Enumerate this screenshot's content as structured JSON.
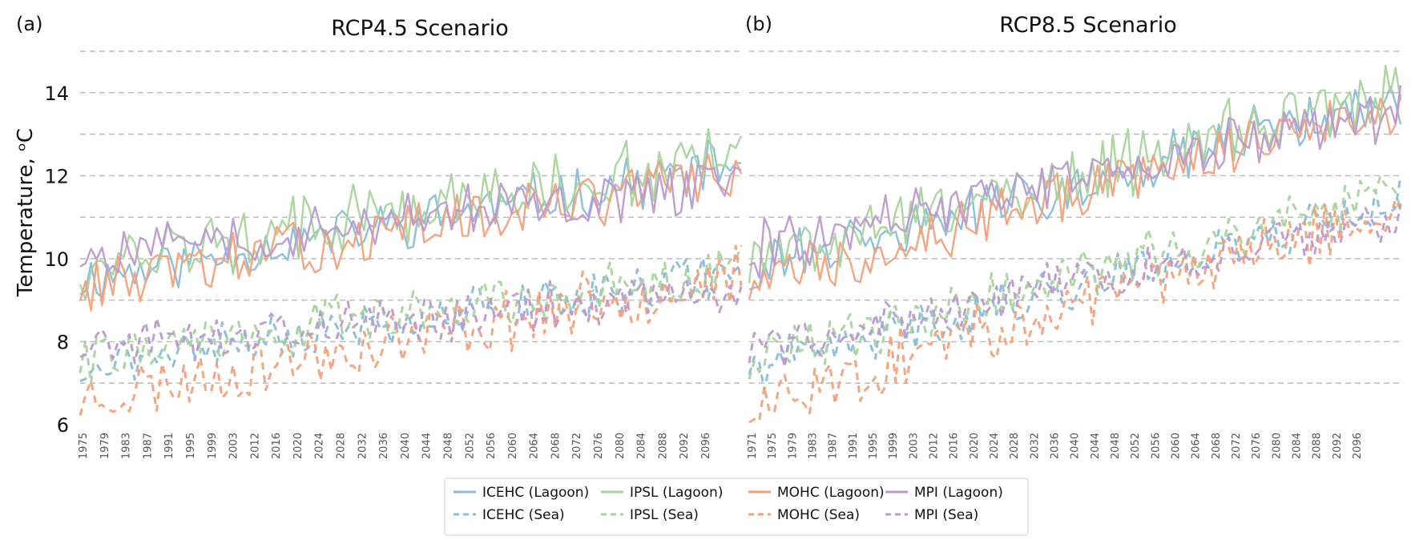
{
  "ylabel": "Temperature, ᵒC",
  "colors": {
    "ICEHC": "#88bddc",
    "IPSL": "#a6d59a",
    "MOHC": "#f4a079",
    "MPI": "#bc99d0"
  },
  "legend": {
    "items": [
      {
        "label": "ICEHC (Lagoon)",
        "model": "ICEHC",
        "dashed": false
      },
      {
        "label": "IPSL (Lagoon)",
        "model": "IPSL",
        "dashed": false
      },
      {
        "label": "MOHC (Lagoon)",
        "model": "MOHC",
        "dashed": false
      },
      {
        "label": "MPI (Lagoon)",
        "model": "MPI",
        "dashed": false
      },
      {
        "label": "ICEHC (Sea)",
        "model": "ICEHC",
        "dashed": true
      },
      {
        "label": "IPSL (Sea)",
        "model": "IPSL",
        "dashed": true
      },
      {
        "label": "MOHC (Sea)",
        "model": "MOHC",
        "dashed": true
      },
      {
        "label": "MPI (Sea)",
        "model": "MPI",
        "dashed": true
      }
    ]
  },
  "chart_data": [
    {
      "type": "line",
      "panel_label": "(a)",
      "title": "RCP4.5 Scenario",
      "xlabel": "",
      "ylabel": "Temperature, ᵒC",
      "ylim": [
        6,
        15
      ],
      "yticks": [
        6,
        8,
        10,
        12,
        14
      ],
      "grid": true,
      "n_points": 122,
      "x_tick_labels": [
        "1975",
        "1979",
        "1983",
        "1987",
        "1991",
        "1995",
        "1999",
        "2003",
        "2012",
        "2016",
        "2020",
        "2024",
        "2028",
        "2032",
        "2036",
        "2040",
        "2044",
        "2048",
        "2052",
        "2056",
        "2060",
        "2064",
        "2068",
        "2072",
        "2076",
        "2080",
        "2084",
        "2088",
        "2092",
        "2096"
      ],
      "series": [
        {
          "name": "ICEHC (Lagoon)",
          "model": "ICEHC",
          "dashed": false,
          "start": 9.5,
          "end": 12.3,
          "amp": 0.55,
          "seed": 11
        },
        {
          "name": "IPSL (Lagoon)",
          "model": "IPSL",
          "dashed": false,
          "start": 9.8,
          "end": 12.5,
          "amp": 0.7,
          "seed": 12
        },
        {
          "name": "MOHC (Lagoon)",
          "model": "MOHC",
          "dashed": false,
          "start": 9.3,
          "end": 12.1,
          "amp": 0.6,
          "seed": 13
        },
        {
          "name": "MPI (Lagoon)",
          "model": "MPI",
          "dashed": false,
          "start": 10.1,
          "end": 11.8,
          "amp": 0.6,
          "seed": 14
        },
        {
          "name": "ICEHC (Sea)",
          "model": "ICEHC",
          "dashed": true,
          "start": 7.4,
          "end": 9.7,
          "amp": 0.5,
          "seed": 21
        },
        {
          "name": "IPSL (Sea)",
          "model": "IPSL",
          "dashed": true,
          "start": 7.6,
          "end": 9.8,
          "amp": 0.55,
          "seed": 22
        },
        {
          "name": "MOHC (Sea)",
          "model": "MOHC",
          "dashed": true,
          "start": 6.6,
          "end": 9.6,
          "amp": 0.65,
          "seed": 23
        },
        {
          "name": "MPI (Sea)",
          "model": "MPI",
          "dashed": true,
          "start": 7.9,
          "end": 9.2,
          "amp": 0.5,
          "seed": 24
        }
      ]
    },
    {
      "type": "line",
      "panel_label": "(b)",
      "title": "RCP8.5 Scenario",
      "xlabel": "",
      "ylabel": "",
      "ylim": [
        6,
        15
      ],
      "yticks": [
        6,
        8,
        10,
        12,
        14
      ],
      "grid": true,
      "n_points": 130,
      "x_tick_labels": [
        "1971",
        "1975",
        "1979",
        "1983",
        "1987",
        "1991",
        "1995",
        "1999",
        "2003",
        "2012",
        "2016",
        "2020",
        "2024",
        "2028",
        "2032",
        "2036",
        "2040",
        "2044",
        "2048",
        "2052",
        "2056",
        "2060",
        "2064",
        "2068",
        "2072",
        "2076",
        "2080",
        "2084",
        "2088",
        "2092",
        "2096"
      ],
      "series": [
        {
          "name": "ICEHC (Lagoon)",
          "model": "ICEHC",
          "dashed": false,
          "start": 9.7,
          "end": 13.9,
          "amp": 0.6,
          "seed": 31
        },
        {
          "name": "IPSL (Lagoon)",
          "model": "IPSL",
          "dashed": false,
          "start": 9.9,
          "end": 14.1,
          "amp": 0.7,
          "seed": 32
        },
        {
          "name": "MOHC (Lagoon)",
          "model": "MOHC",
          "dashed": false,
          "start": 9.4,
          "end": 13.8,
          "amp": 0.6,
          "seed": 33
        },
        {
          "name": "MPI (Lagoon)",
          "model": "MPI",
          "dashed": false,
          "start": 10.2,
          "end": 13.6,
          "amp": 0.6,
          "seed": 34
        },
        {
          "name": "ICEHC (Sea)",
          "model": "ICEHC",
          "dashed": true,
          "start": 7.3,
          "end": 11.4,
          "amp": 0.5,
          "seed": 41
        },
        {
          "name": "IPSL (Sea)",
          "model": "IPSL",
          "dashed": true,
          "start": 7.5,
          "end": 11.6,
          "amp": 0.55,
          "seed": 42
        },
        {
          "name": "MOHC (Sea)",
          "model": "MOHC",
          "dashed": true,
          "start": 6.5,
          "end": 11.2,
          "amp": 0.65,
          "seed": 43
        },
        {
          "name": "MPI (Sea)",
          "model": "MPI",
          "dashed": true,
          "start": 7.8,
          "end": 11.0,
          "amp": 0.5,
          "seed": 44
        }
      ]
    }
  ]
}
